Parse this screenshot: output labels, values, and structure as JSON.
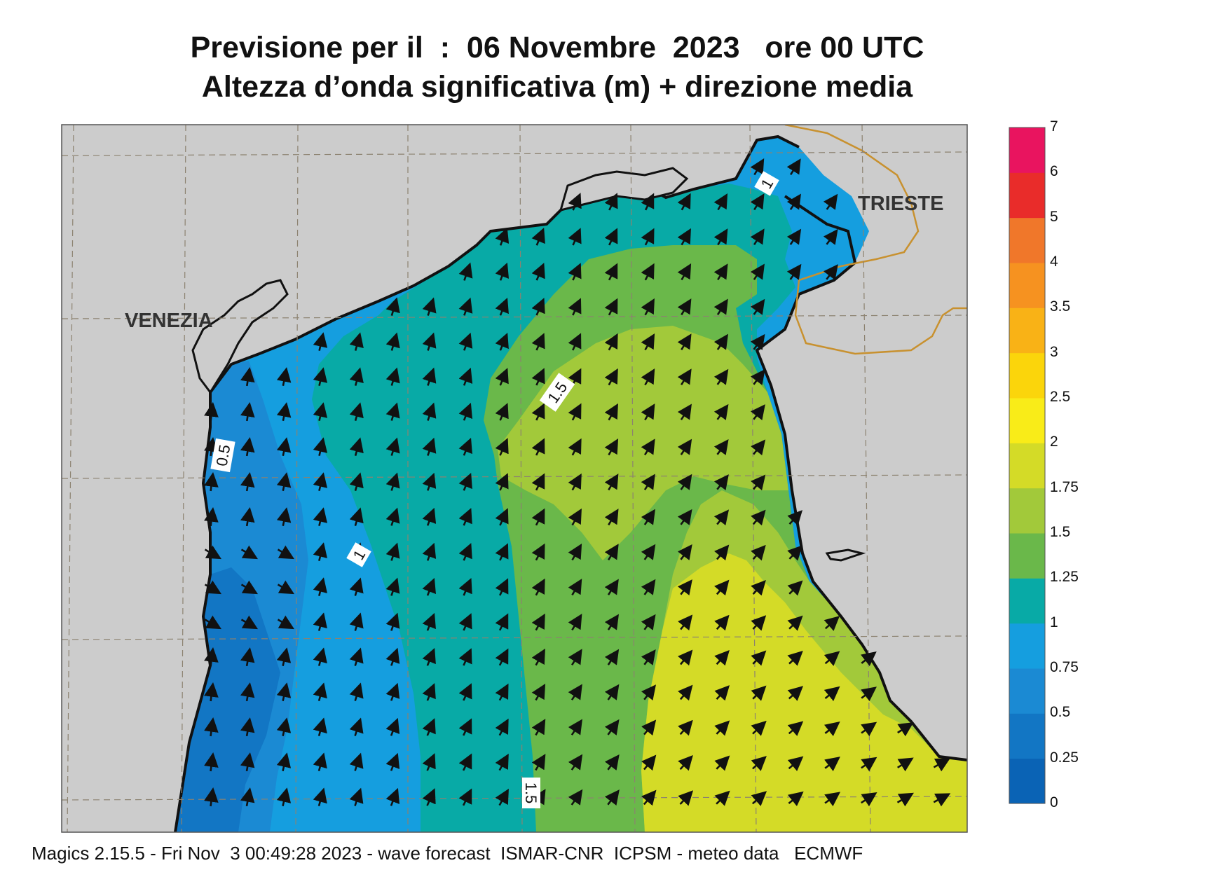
{
  "title": {
    "line1": "Previsione per il  :  06 Novembre  2023   ore 00 UTC",
    "line2": "Altezza d’onda significativa (m) + direzione media"
  },
  "places": {
    "venezia": "VENEZIA",
    "trieste": "TRIESTE"
  },
  "contour_labels": [
    "0.5",
    "1",
    "1.5",
    "1",
    "1.5"
  ],
  "colorbar": {
    "labels": [
      "0",
      "0.25",
      "0.5",
      "0.75",
      "1",
      "1.25",
      "1.5",
      "1.75",
      "2",
      "2.5",
      "3",
      "3.5",
      "4",
      "5",
      "6",
      "7"
    ],
    "colors": [
      "#0a63b5",
      "#1276c4",
      "#1b8ad3",
      "#159edf",
      "#08aaa6",
      "#6ab84a",
      "#a2c93a",
      "#d4db27",
      "#f9ec18",
      "#fbd50b",
      "#f9b216",
      "#f69220",
      "#f0772a",
      "#e92c2a",
      "#e9145f"
    ]
  },
  "map": {
    "land_color": "#cccccc",
    "border_color": "#c8912f"
  },
  "footer": "Magics 2.15.5 - Fri Nov  3 00:49:28 2023 - wave forecast  ISMAR-CNR  ICPSM - meteo data   ECMWF"
}
